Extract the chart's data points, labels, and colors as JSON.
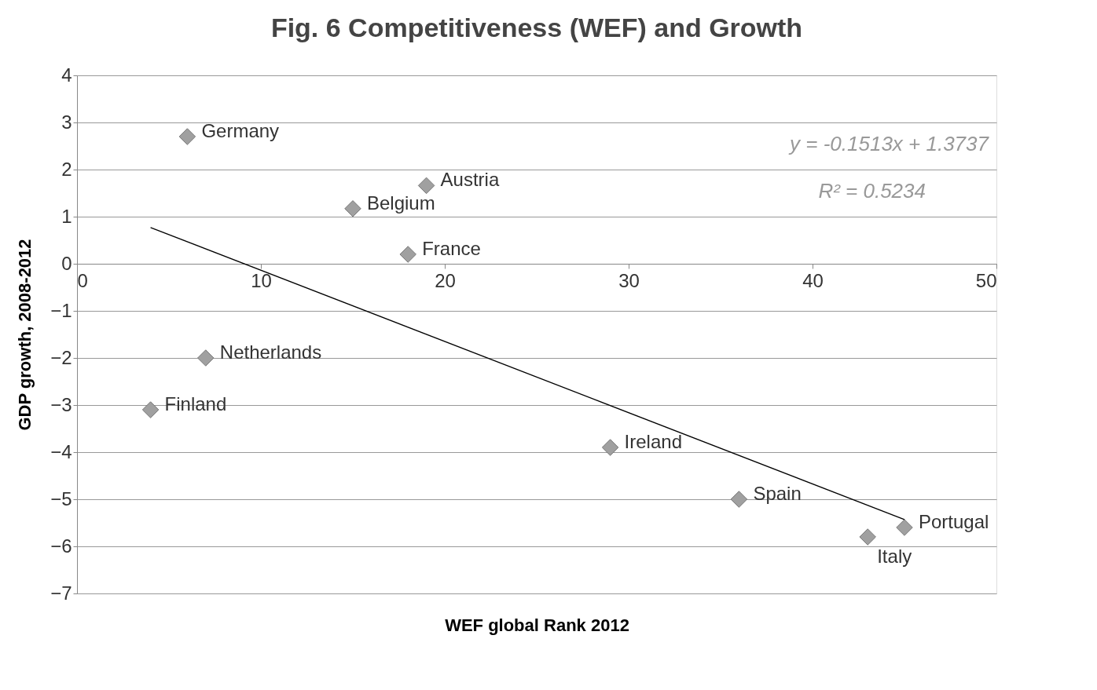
{
  "chart_data": {
    "type": "scatter",
    "title": "Fig. 6 Competitiveness (WEF) and Growth",
    "xlabel": "WEF global Rank 2012",
    "ylabel": "GDP growth, 2008-2012",
    "xlim": [
      0,
      50
    ],
    "ylim": [
      -7,
      4
    ],
    "xticks": [
      0,
      10,
      20,
      30,
      40,
      50
    ],
    "yticks": [
      -7,
      -6,
      -5,
      -4,
      -3,
      -2,
      -1,
      0,
      1,
      2,
      3,
      4
    ],
    "grid": "y",
    "marker": "diamond",
    "series": [
      {
        "type": "scatter",
        "color": "#a0a0a0",
        "x": [
          6,
          19,
          15,
          18,
          7,
          4,
          29,
          36,
          43,
          45
        ],
        "values": [
          2.7,
          1.66,
          1.17,
          0.2,
          -2.0,
          -3.1,
          -3.9,
          -5.0,
          -5.8,
          -5.6
        ]
      },
      {
        "type": "line",
        "marker": "none",
        "color": "#000000",
        "x": [
          4,
          45
        ],
        "values": [
          0.77,
          -5.43
        ]
      }
    ],
    "annotations": [
      {
        "text": "Germany",
        "x": 6,
        "y": 2.7
      },
      {
        "text": "Austria",
        "x": 19,
        "y": 1.66
      },
      {
        "text": "Belgium",
        "x": 15,
        "y": 1.17
      },
      {
        "text": "France",
        "x": 18,
        "y": 0.2
      },
      {
        "text": "Netherlands",
        "x": 7,
        "y": -2.0
      },
      {
        "text": "Finland",
        "x": 4,
        "y": -3.1
      },
      {
        "text": "Ireland",
        "x": 29,
        "y": -3.9
      },
      {
        "text": "Spain",
        "x": 36,
        "y": -5.0
      },
      {
        "text": "Italy",
        "x": 43,
        "y": -5.8
      },
      {
        "text": "Portugal",
        "x": 45,
        "y": -5.6
      },
      "y = -0.1513x + 1.3737",
      "R² = 0.5234"
    ]
  }
}
